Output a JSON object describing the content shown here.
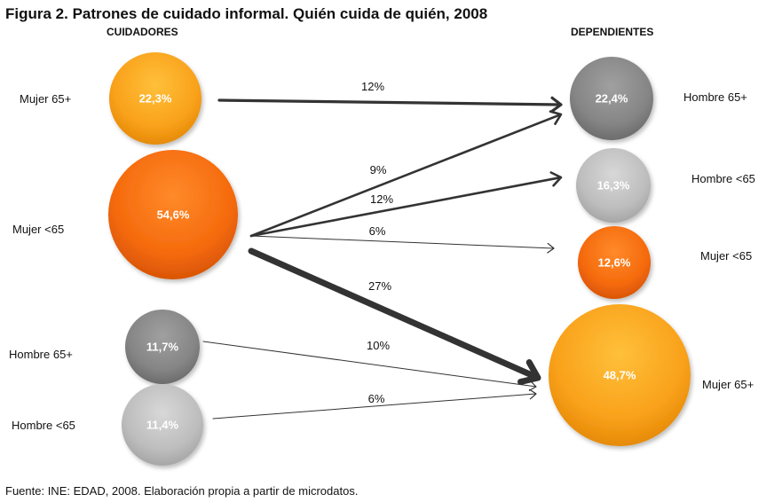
{
  "title": "Figura 2. Patrones de cuidado informal. Quién cuida de quién, 2008",
  "headers": {
    "left": "CUIDADORES",
    "right": "DEPENDIENTES"
  },
  "footer": "Fuente: INE: EDAD, 2008. Elaboración propia a partir de microdatos.",
  "colors": {
    "orange_light": "#f9a11b",
    "orange_dark": "#f56a0c",
    "gray_dark": "#8a8a8a",
    "gray_light": "#bfbfbf",
    "arrow": "#333333"
  },
  "chart_data": {
    "type": "flow-diagram",
    "caregivers": [
      {
        "label": "Mujer 65+",
        "value": "22,3%",
        "color": "orange_light"
      },
      {
        "label": "Mujer <65",
        "value": "54,6%",
        "color": "orange_dark"
      },
      {
        "label": "Hombre 65+",
        "value": "11,7%",
        "color": "gray_dark"
      },
      {
        "label": "Hombre <65",
        "value": "11,4%",
        "color": "gray_light"
      }
    ],
    "dependents": [
      {
        "label": "Hombre 65+",
        "value": "22,4%",
        "color": "gray_dark"
      },
      {
        "label": "Hombre <65",
        "value": "16,3%",
        "color": "gray_light"
      },
      {
        "label": "Mujer <65",
        "value": "12,6%",
        "color": "orange_dark"
      },
      {
        "label": "Mujer 65+",
        "value": "48,7%",
        "color": "orange_light"
      }
    ],
    "flows": [
      {
        "from": "Mujer 65+",
        "to": "Hombre 65+",
        "percent": "12%"
      },
      {
        "from": "Mujer <65",
        "to": "Hombre 65+",
        "percent": "9%"
      },
      {
        "from": "Mujer <65",
        "to": "Hombre <65",
        "percent": "12%"
      },
      {
        "from": "Mujer <65",
        "to": "Mujer <65",
        "percent": "6%"
      },
      {
        "from": "Mujer <65",
        "to": "Mujer 65+",
        "percent": "27%"
      },
      {
        "from": "Hombre 65+",
        "to": "Mujer 65+",
        "percent": "10%"
      },
      {
        "from": "Hombre <65",
        "to": "Mujer 65+",
        "percent": "6%"
      }
    ]
  }
}
